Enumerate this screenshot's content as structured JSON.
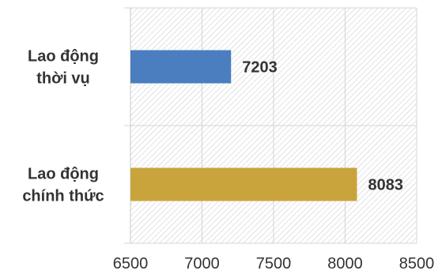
{
  "chart_data": {
    "type": "bar",
    "orientation": "horizontal",
    "categories": [
      [
        "Lao động",
        "thời vụ"
      ],
      [
        "Lao động",
        "chính thức"
      ]
    ],
    "values": [
      7203,
      8083
    ],
    "data_labels": [
      "7203",
      "8083"
    ],
    "bar_colors": [
      "#4a7ebf",
      "#c9a33c"
    ],
    "xlim": [
      6500,
      8500
    ],
    "x_ticks": [
      6500,
      7000,
      7500,
      8000,
      8500
    ],
    "x_tick_labels": [
      "6500",
      "7000",
      "7500",
      "8000",
      "8500"
    ],
    "grid": true,
    "plot_background": "hatched",
    "title": "",
    "xlabel": "",
    "ylabel": ""
  }
}
